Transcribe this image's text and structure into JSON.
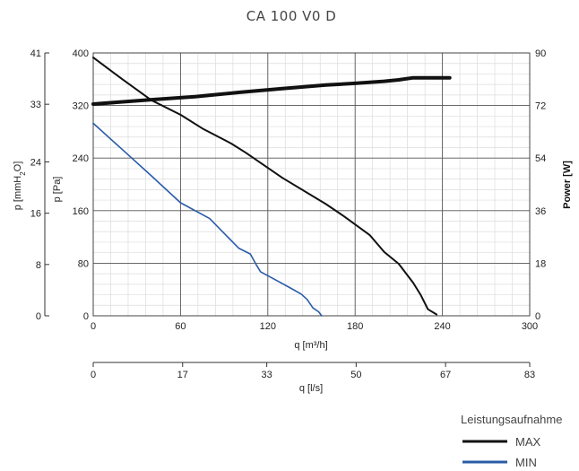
{
  "chart_data": {
    "type": "line",
    "title": "CA 100 V0 D",
    "x_axis_primary": {
      "label": "q [m³/h]",
      "range": [
        0,
        300
      ],
      "ticks": [
        0,
        60,
        120,
        180,
        240,
        300
      ]
    },
    "x_axis_secondary": {
      "label": "q [l/s]",
      "range": [
        0,
        83
      ],
      "ticks": [
        0,
        17,
        33,
        50,
        67,
        83
      ]
    },
    "y_axis_pa": {
      "label": "p [Pa]",
      "range": [
        0,
        400
      ],
      "ticks": [
        0,
        80,
        160,
        240,
        320,
        400
      ]
    },
    "y_axis_mmh2o": {
      "label_main": "p [mmH",
      "label_sub": "2",
      "label_end": "O]",
      "range": [
        0,
        41
      ],
      "ticks": [
        0,
        8,
        16,
        24,
        33,
        41
      ]
    },
    "y_axis_power": {
      "label": "Power [W]",
      "range": [
        0,
        90
      ],
      "ticks": [
        0,
        18,
        36,
        54,
        72,
        90
      ]
    },
    "grid": true,
    "legend": {
      "title": "Leistungsaufnahme",
      "placement": "bottom-right",
      "items": [
        {
          "label": "MAX",
          "color": "#111111"
        },
        {
          "label": "MIN",
          "color": "#2a5ca8"
        }
      ]
    },
    "series": [
      {
        "name": "MAX",
        "kind": "pressure",
        "axis": "y_axis_pa",
        "color": "#111111",
        "points": [
          [
            0,
            393
          ],
          [
            20,
            360
          ],
          [
            40,
            328
          ],
          [
            60,
            306
          ],
          [
            75,
            285
          ],
          [
            95,
            262
          ],
          [
            105,
            248
          ],
          [
            130,
            210
          ],
          [
            160,
            170
          ],
          [
            172,
            152
          ],
          [
            190,
            123
          ],
          [
            200,
            97
          ],
          [
            210,
            79
          ],
          [
            220,
            50
          ],
          [
            225,
            32
          ],
          [
            230,
            10
          ],
          [
            236,
            2
          ]
        ]
      },
      {
        "name": "MIN",
        "kind": "pressure",
        "axis": "y_axis_pa",
        "color": "#2a5ca8",
        "points": [
          [
            0,
            293
          ],
          [
            20,
            253
          ],
          [
            40,
            213
          ],
          [
            60,
            172
          ],
          [
            80,
            148
          ],
          [
            100,
            103
          ],
          [
            108,
            94
          ],
          [
            112,
            78
          ],
          [
            115,
            67
          ],
          [
            125,
            55
          ],
          [
            135,
            43
          ],
          [
            143,
            33
          ],
          [
            147,
            25
          ],
          [
            151,
            12
          ],
          [
            155,
            6
          ],
          [
            157,
            0
          ]
        ]
      },
      {
        "name": "MAX",
        "kind": "power",
        "axis": "y_axis_power",
        "color": "#111111",
        "points": [
          [
            0,
            72.5
          ],
          [
            40,
            74
          ],
          [
            70,
            75
          ],
          [
            100,
            76.5
          ],
          [
            130,
            77.8
          ],
          [
            160,
            79
          ],
          [
            180,
            79.6
          ],
          [
            200,
            80.3
          ],
          [
            210,
            80.8
          ],
          [
            220,
            81.5
          ],
          [
            245,
            81.5
          ]
        ]
      }
    ]
  }
}
